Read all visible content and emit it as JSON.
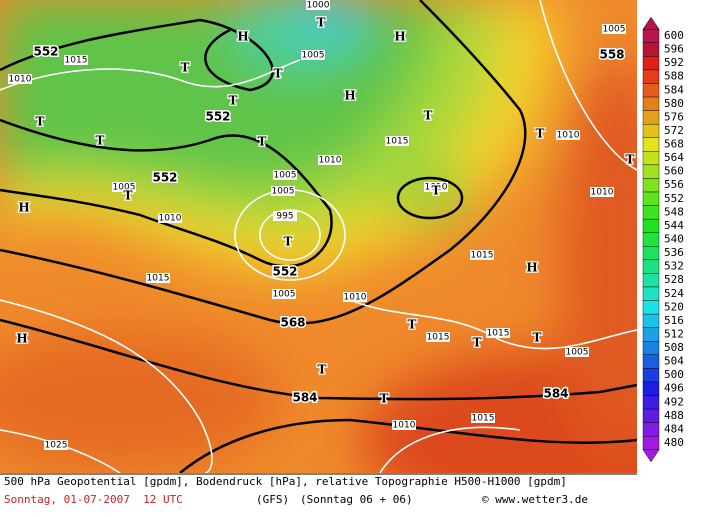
{
  "map_labels": [
    "552",
    "552",
    "552",
    "552",
    "558",
    "568",
    "584",
    "584",
    "1010",
    "1005",
    "1000",
    "1005",
    "1010",
    "1015",
    "1010",
    "1005",
    "1005",
    "995",
    "1010",
    "1010",
    "1015",
    "1015",
    "1005",
    "1010",
    "1015",
    "1015",
    "1005",
    "1015",
    "1010",
    "1025",
    "1010",
    "1005",
    "1015",
    "H",
    "T",
    "T",
    "T",
    "H",
    "H",
    "T",
    "T",
    "T",
    "T",
    "T",
    "T",
    "T",
    "H",
    "T",
    "T",
    "H",
    "H",
    "T",
    "T",
    "T",
    "T",
    "T",
    "T"
  ],
  "legend": {
    "values": [
      600,
      596,
      592,
      588,
      584,
      580,
      576,
      572,
      568,
      564,
      560,
      556,
      552,
      548,
      544,
      540,
      536,
      532,
      528,
      524,
      520,
      516,
      512,
      508,
      504,
      500,
      496,
      492,
      488,
      484,
      480
    ]
  },
  "footer": {
    "description": "500 hPa Geopotential [gpdm], Bodendruck [hPa], relative Topographie H500-H1000 [gpdm]",
    "date": "Sonntag, 01-07-2007  12 UTC",
    "model": "(GFS)",
    "run": "(Sonntag 06 + 06)",
    "source": "© www.wetter3.de"
  }
}
